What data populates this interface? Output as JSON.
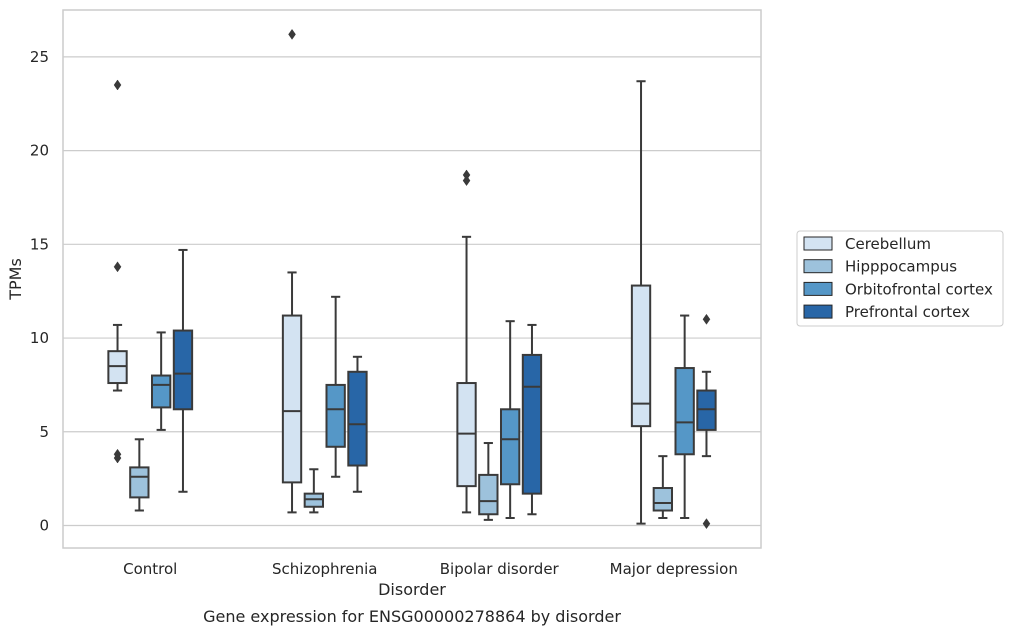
{
  "caption": "Gene expression for ENSG00000278864 by disorder",
  "chart_data": {
    "type": "box",
    "xlabel": "Disorder",
    "ylabel": "TPMs",
    "ylim": [
      -1.2,
      27.5
    ],
    "yticks": [
      0,
      5,
      10,
      15,
      20,
      25
    ],
    "grid": "horizontal",
    "legend_position": "right",
    "categories": [
      "Control",
      "Schizophrenia",
      "Bipolar disorder",
      "Major depression"
    ],
    "series": [
      {
        "name": "Cerebellum",
        "color": "#d3e3f2",
        "boxes": [
          {
            "whisker_low": 7.2,
            "q1": 7.6,
            "median": 8.5,
            "q3": 9.3,
            "whisker_high": 10.7,
            "outliers": [
              23.5,
              13.8,
              3.8,
              3.6
            ]
          },
          {
            "whisker_low": 0.7,
            "q1": 2.3,
            "median": 6.1,
            "q3": 11.2,
            "whisker_high": 13.5,
            "outliers": [
              26.2
            ]
          },
          {
            "whisker_low": 0.7,
            "q1": 2.1,
            "median": 4.9,
            "q3": 7.6,
            "whisker_high": 15.4,
            "outliers": [
              18.7,
              18.4
            ]
          },
          {
            "whisker_low": 0.1,
            "q1": 5.3,
            "median": 6.5,
            "q3": 12.8,
            "whisker_high": 23.7,
            "outliers": []
          }
        ]
      },
      {
        "name": "Hipppocampus",
        "color": "#9dc2dc",
        "boxes": [
          {
            "whisker_low": 0.8,
            "q1": 1.5,
            "median": 2.6,
            "q3": 3.1,
            "whisker_high": 4.6,
            "outliers": []
          },
          {
            "whisker_low": 0.7,
            "q1": 1.0,
            "median": 1.4,
            "q3": 1.7,
            "whisker_high": 3.0,
            "outliers": []
          },
          {
            "whisker_low": 0.3,
            "q1": 0.6,
            "median": 1.3,
            "q3": 2.7,
            "whisker_high": 4.4,
            "outliers": []
          },
          {
            "whisker_low": 0.4,
            "q1": 0.8,
            "median": 1.2,
            "q3": 2.0,
            "whisker_high": 3.7,
            "outliers": []
          }
        ]
      },
      {
        "name": "Orbitofrontal cortex",
        "color": "#5597c7",
        "boxes": [
          {
            "whisker_low": 5.1,
            "q1": 6.3,
            "median": 7.5,
            "q3": 8.0,
            "whisker_high": 10.3,
            "outliers": []
          },
          {
            "whisker_low": 2.6,
            "q1": 4.2,
            "median": 6.2,
            "q3": 7.5,
            "whisker_high": 12.2,
            "outliers": []
          },
          {
            "whisker_low": 0.4,
            "q1": 2.2,
            "median": 4.6,
            "q3": 6.2,
            "whisker_high": 10.9,
            "outliers": []
          },
          {
            "whisker_low": 0.4,
            "q1": 3.8,
            "median": 5.5,
            "q3": 8.4,
            "whisker_high": 11.2,
            "outliers": []
          }
        ]
      },
      {
        "name": "Prefrontal cortex",
        "color": "#2866a7",
        "boxes": [
          {
            "whisker_low": 1.8,
            "q1": 6.2,
            "median": 8.1,
            "q3": 10.4,
            "whisker_high": 14.7,
            "outliers": []
          },
          {
            "whisker_low": 1.8,
            "q1": 3.2,
            "median": 5.4,
            "q3": 8.2,
            "whisker_high": 9.0,
            "outliers": []
          },
          {
            "whisker_low": 0.6,
            "q1": 1.7,
            "median": 7.4,
            "q3": 9.1,
            "whisker_high": 10.7,
            "outliers": []
          },
          {
            "whisker_low": 3.7,
            "q1": 5.1,
            "median": 6.2,
            "q3": 7.2,
            "whisker_high": 8.2,
            "outliers": [
              11.0,
              0.1
            ]
          }
        ]
      }
    ]
  }
}
